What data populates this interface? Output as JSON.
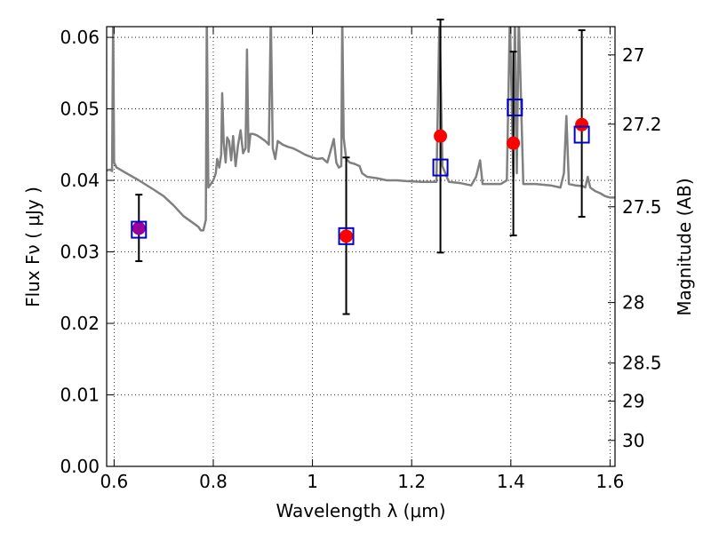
{
  "chart_data": {
    "type": "scatter",
    "title": "",
    "xlabel": "Wavelength  λ (μm)",
    "ylabel": "Flux  Fν  ( μJy )",
    "y2label": "Magnitude (AB)",
    "xlim": [
      0.585,
      1.61
    ],
    "ylim": [
      0.0,
      0.0615
    ],
    "grid": true,
    "grid_style": "dotted",
    "x_ticks": [
      0.6,
      0.8,
      1.0,
      1.2,
      1.4,
      1.6
    ],
    "x_tick_labels": [
      "0.6",
      "0.8",
      "1",
      "1.2",
      "1.4",
      "1.6"
    ],
    "y_ticks": [
      0.0,
      0.01,
      0.02,
      0.03,
      0.04,
      0.05,
      0.06
    ],
    "y_tick_labels": [
      "0.00",
      "0.01",
      "0.02",
      "0.03",
      "0.04",
      "0.05",
      "0.06"
    ],
    "y2_ticks": [
      27,
      27.2,
      27.5,
      28,
      28.5,
      29,
      30
    ],
    "y2_tick_labels": [
      "27",
      "27.2",
      "27.5",
      "28",
      "28.5",
      "29",
      "30"
    ],
    "colors": {
      "model": "#808080",
      "observed": "#ff0000",
      "model_band": "#0000cc",
      "overlap": "#990099",
      "errorbar": "#000000"
    },
    "series": [
      {
        "kind": "observed",
        "marker": "circle",
        "points": [
          {
            "x": 0.65,
            "y": 0.0333,
            "yerr_low": 0.0287,
            "yerr_high": 0.038
          },
          {
            "x": 1.068,
            "y": 0.0322,
            "yerr_low": 0.0213,
            "yerr_high": 0.0432
          },
          {
            "x": 1.258,
            "y": 0.0462,
            "yerr_low": 0.0299,
            "yerr_high": 0.0625
          },
          {
            "x": 1.405,
            "y": 0.0452,
            "yerr_low": 0.0323,
            "yerr_high": 0.058
          },
          {
            "x": 1.543,
            "y": 0.0478,
            "yerr_low": 0.0349,
            "yerr_high": 0.061
          }
        ]
      },
      {
        "kind": "model_band",
        "marker": "square",
        "points": [
          {
            "x": 0.65,
            "y": 0.0331
          },
          {
            "x": 1.068,
            "y": 0.0322
          },
          {
            "x": 1.258,
            "y": 0.0418
          },
          {
            "x": 1.408,
            "y": 0.0502
          },
          {
            "x": 1.543,
            "y": 0.0464
          }
        ]
      },
      {
        "kind": "model",
        "marker": "line",
        "points": [
          [
            0.585,
            0.0414
          ],
          [
            0.592,
            0.0415
          ],
          [
            0.596,
            0.0413
          ],
          [
            0.598,
            0.063
          ],
          [
            0.6,
            0.0425
          ],
          [
            0.605,
            0.0418
          ],
          [
            0.62,
            0.0412
          ],
          [
            0.65,
            0.04
          ],
          [
            0.68,
            0.0387
          ],
          [
            0.7,
            0.0378
          ],
          [
            0.72,
            0.0365
          ],
          [
            0.74,
            0.035
          ],
          [
            0.75,
            0.0345
          ],
          [
            0.76,
            0.034
          ],
          [
            0.77,
            0.0335
          ],
          [
            0.775,
            0.033
          ],
          [
            0.78,
            0.033
          ],
          [
            0.785,
            0.0345
          ],
          [
            0.787,
            0.063
          ],
          [
            0.79,
            0.039
          ],
          [
            0.795,
            0.0395
          ],
          [
            0.8,
            0.04
          ],
          [
            0.805,
            0.041
          ],
          [
            0.808,
            0.043
          ],
          [
            0.812,
            0.0418
          ],
          [
            0.816,
            0.0436
          ],
          [
            0.818,
            0.0522
          ],
          [
            0.821,
            0.0453
          ],
          [
            0.825,
            0.0425
          ],
          [
            0.828,
            0.046
          ],
          [
            0.832,
            0.0455
          ],
          [
            0.836,
            0.0428
          ],
          [
            0.84,
            0.0462
          ],
          [
            0.845,
            0.042
          ],
          [
            0.85,
            0.045
          ],
          [
            0.855,
            0.047
          ],
          [
            0.86,
            0.0438
          ],
          [
            0.865,
            0.0445
          ],
          [
            0.868,
            0.0583
          ],
          [
            0.871,
            0.044
          ],
          [
            0.875,
            0.0465
          ],
          [
            0.88,
            0.0465
          ],
          [
            0.888,
            0.0463
          ],
          [
            0.895,
            0.046
          ],
          [
            0.905,
            0.0455
          ],
          [
            0.912,
            0.045
          ],
          [
            0.916,
            0.063
          ],
          [
            0.92,
            0.0445
          ],
          [
            0.925,
            0.043
          ],
          [
            0.93,
            0.0455
          ],
          [
            0.94,
            0.045
          ],
          [
            0.95,
            0.0447
          ],
          [
            0.96,
            0.0445
          ],
          [
            0.975,
            0.044
          ],
          [
            0.985,
            0.0436
          ],
          [
            1.0,
            0.0432
          ],
          [
            1.01,
            0.043
          ],
          [
            1.02,
            0.0431
          ],
          [
            1.03,
            0.0425
          ],
          [
            1.038,
            0.0445
          ],
          [
            1.043,
            0.0458
          ],
          [
            1.048,
            0.0425
          ],
          [
            1.053,
            0.0418
          ],
          [
            1.058,
            0.042
          ],
          [
            1.06,
            0.063
          ],
          [
            1.063,
            0.046
          ],
          [
            1.068,
            0.043
          ],
          [
            1.075,
            0.0425
          ],
          [
            1.085,
            0.0423
          ],
          [
            1.095,
            0.042
          ],
          [
            1.1,
            0.041
          ],
          [
            1.11,
            0.0405
          ],
          [
            1.13,
            0.0403
          ],
          [
            1.15,
            0.04
          ],
          [
            1.17,
            0.04
          ],
          [
            1.19,
            0.0399
          ],
          [
            1.22,
            0.0398
          ],
          [
            1.25,
            0.0398
          ],
          [
            1.256,
            0.063
          ],
          [
            1.262,
            0.042
          ],
          [
            1.275,
            0.0398
          ],
          [
            1.3,
            0.0396
          ],
          [
            1.32,
            0.0393
          ],
          [
            1.33,
            0.0405
          ],
          [
            1.338,
            0.0428
          ],
          [
            1.343,
            0.0395
          ],
          [
            1.36,
            0.0395
          ],
          [
            1.38,
            0.0395
          ],
          [
            1.392,
            0.04
          ],
          [
            1.398,
            0.063
          ],
          [
            1.405,
            0.0405
          ],
          [
            1.408,
            0.063
          ],
          [
            1.412,
            0.041
          ],
          [
            1.416,
            0.063
          ],
          [
            1.425,
            0.0395
          ],
          [
            1.45,
            0.0395
          ],
          [
            1.48,
            0.0393
          ],
          [
            1.5,
            0.039
          ],
          [
            1.507,
            0.041
          ],
          [
            1.512,
            0.049
          ],
          [
            1.517,
            0.0395
          ],
          [
            1.53,
            0.0393
          ],
          [
            1.545,
            0.0392
          ],
          [
            1.55,
            0.039
          ],
          [
            1.555,
            0.0405
          ],
          [
            1.56,
            0.039
          ],
          [
            1.57,
            0.0385
          ],
          [
            1.58,
            0.0382
          ],
          [
            1.59,
            0.0378
          ],
          [
            1.6,
            0.0376
          ],
          [
            1.61,
            0.0376
          ]
        ]
      }
    ]
  }
}
